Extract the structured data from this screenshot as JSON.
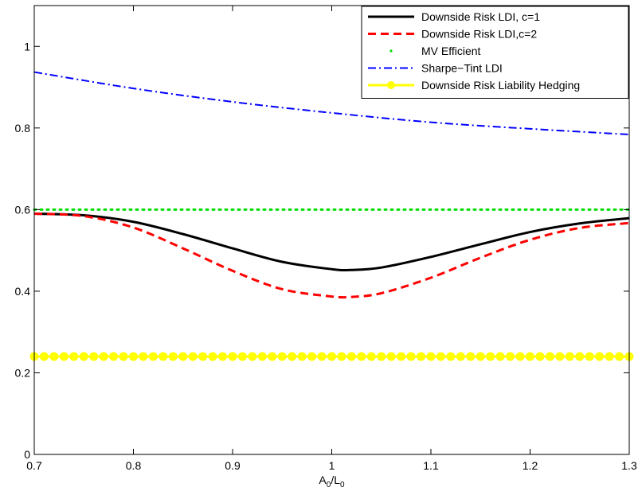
{
  "chart_data": {
    "type": "line",
    "title": "",
    "xlabel": {
      "main": "A",
      "sub1": "0",
      "sep": "/L",
      "sub2": "0"
    },
    "ylabel": "",
    "xlim": [
      0.7,
      1.3
    ],
    "ylim": [
      0,
      1.1
    ],
    "xticks": [
      0.7,
      0.8,
      0.9,
      1.0,
      1.1,
      1.2,
      1.3
    ],
    "xtick_labels": [
      "0.7",
      "0.8",
      "0.9",
      "1",
      "1.1",
      "1.2",
      "1.3"
    ],
    "yticks": [
      0,
      0.2,
      0.4,
      0.6,
      0.8,
      1.0
    ],
    "ytick_labels": [
      "0",
      "0.2",
      "0.4",
      "0.6",
      "0.8",
      "1"
    ],
    "grid": false,
    "legend_position": "top-right",
    "series": [
      {
        "name": "Downside Risk LDI, c=1",
        "color": "#000000",
        "style": "solid",
        "x": [
          0.7,
          0.75,
          0.8,
          0.85,
          0.9,
          0.95,
          1.0,
          1.02,
          1.05,
          1.1,
          1.15,
          1.2,
          1.25,
          1.3
        ],
        "y": [
          0.59,
          0.586,
          0.57,
          0.54,
          0.505,
          0.472,
          0.454,
          0.452,
          0.458,
          0.484,
          0.515,
          0.545,
          0.566,
          0.579
        ]
      },
      {
        "name": "Downside Risk LDI,c=2",
        "color": "#ff0000",
        "style": "dashed",
        "x": [
          0.7,
          0.75,
          0.8,
          0.85,
          0.9,
          0.95,
          1.0,
          1.02,
          1.05,
          1.1,
          1.15,
          1.2,
          1.25,
          1.3
        ],
        "y": [
          0.59,
          0.584,
          0.556,
          0.505,
          0.45,
          0.405,
          0.387,
          0.386,
          0.395,
          0.433,
          0.482,
          0.526,
          0.555,
          0.567
        ]
      },
      {
        "name": "MV Efficient",
        "color": "#00dd00",
        "style": "dotted",
        "x": [
          0.7,
          1.3
        ],
        "y": [
          0.6,
          0.6
        ]
      },
      {
        "name": "Sharpe−Tint LDI",
        "color": "#0000ff",
        "style": "dashdot",
        "x": [
          0.7,
          0.8,
          0.9,
          1.0,
          1.1,
          1.2,
          1.3
        ],
        "y": [
          0.937,
          0.897,
          0.864,
          0.837,
          0.814,
          0.798,
          0.784
        ]
      },
      {
        "name": "Downside Risk Liability Hedging",
        "color": "#ffff00",
        "style": "solid-markers",
        "x": [
          0.7,
          1.3
        ],
        "y": [
          0.24,
          0.24
        ],
        "marker_count": 61
      }
    ]
  }
}
